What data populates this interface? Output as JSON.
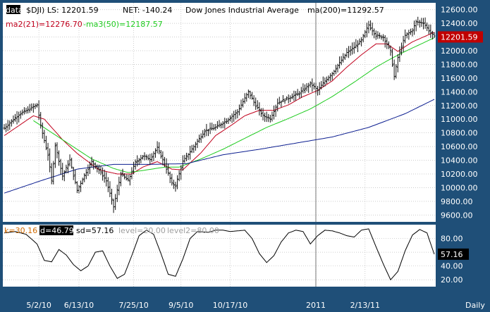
{
  "chart_data": [
    {
      "type": "ohlc",
      "header": {
        "symbol_text": "data(",
        "symbol_code": "$DJI",
        "last_label": ") LS: 12201.59",
        "net_label": "NET: -140.24",
        "name": "Dow Jones Industrial Average",
        "ma200_label": "ma(200)=11292.57",
        "ma21_label": "ma2(21)=12276.70",
        "ma50_label": "-ma3(50)=12187.57"
      },
      "last_value": 12201.59,
      "last_value_label": "12201.59",
      "ylim": [
        9500,
        12700
      ],
      "y_ticks": [
        9600,
        9800,
        10000,
        10200,
        10400,
        10600,
        10800,
        11000,
        11200,
        11400,
        11600,
        11800,
        12000,
        12200,
        12400,
        12600
      ],
      "y_tick_labels": [
        "9600.00",
        "9800.00",
        "10000.00",
        "10200.00",
        "10400.00",
        "10600.00",
        "10800.00",
        "11000.00",
        "11200.00",
        "11400.00",
        "11600.00",
        "11800.00",
        "12000.00",
        "12200.00",
        "12400.00",
        "12600.00"
      ],
      "x_range": [
        0,
        118
      ],
      "close_keypoints": [
        [
          0,
          10870
        ],
        [
          4,
          11070
        ],
        [
          7,
          11150
        ],
        [
          9,
          11210
        ],
        [
          10,
          10900
        ],
        [
          12,
          10480
        ],
        [
          13,
          10100
        ],
        [
          14,
          10620
        ],
        [
          16,
          10170
        ],
        [
          18,
          10400
        ],
        [
          20,
          9960
        ],
        [
          22,
          10180
        ],
        [
          24,
          10380
        ],
        [
          26,
          10260
        ],
        [
          28,
          10100
        ],
        [
          30,
          9720
        ],
        [
          32,
          10200
        ],
        [
          34,
          10100
        ],
        [
          36,
          10370
        ],
        [
          38,
          10460
        ],
        [
          40,
          10420
        ],
        [
          42,
          10580
        ],
        [
          44,
          10350
        ],
        [
          46,
          10060
        ],
        [
          47,
          10030
        ],
        [
          49,
          10380
        ],
        [
          52,
          10600
        ],
        [
          55,
          10830
        ],
        [
          58,
          10880
        ],
        [
          61,
          10980
        ],
        [
          64,
          11110
        ],
        [
          67,
          11400
        ],
        [
          69,
          11200
        ],
        [
          71,
          11050
        ],
        [
          73,
          11010
        ],
        [
          75,
          11240
        ],
        [
          78,
          11310
        ],
        [
          81,
          11380
        ],
        [
          84,
          11520
        ],
        [
          86,
          11420
        ],
        [
          88,
          11560
        ],
        [
          90,
          11670
        ],
        [
          92,
          11820
        ],
        [
          94,
          11970
        ],
        [
          96,
          12050
        ],
        [
          98,
          12150
        ],
        [
          100,
          12380
        ],
        [
          102,
          12220
        ],
        [
          104,
          12200
        ],
        [
          106,
          11990
        ],
        [
          107,
          11620
        ],
        [
          108,
          11900
        ],
        [
          110,
          12220
        ],
        [
          112,
          12300
        ],
        [
          113,
          12420
        ],
        [
          115,
          12410
        ],
        [
          117,
          12260
        ],
        [
          118,
          12201.59
        ]
      ],
      "ma_lines": [
        {
          "name": "ma2(21)",
          "color": "#c0001c",
          "keypoints": [
            [
              0,
              10760
            ],
            [
              8,
              11050
            ],
            [
              11,
              11000
            ],
            [
              16,
              10700
            ],
            [
              20,
              10500
            ],
            [
              26,
              10260
            ],
            [
              31,
              10200
            ],
            [
              35,
              10200
            ],
            [
              38,
              10300
            ],
            [
              42,
              10380
            ],
            [
              46,
              10270
            ],
            [
              49,
              10260
            ],
            [
              54,
              10510
            ],
            [
              58,
              10760
            ],
            [
              62,
              10900
            ],
            [
              66,
              11050
            ],
            [
              70,
              11130
            ],
            [
              74,
              11130
            ],
            [
              78,
              11210
            ],
            [
              82,
              11330
            ],
            [
              86,
              11420
            ],
            [
              90,
              11560
            ],
            [
              94,
              11760
            ],
            [
              98,
              11940
            ],
            [
              102,
              12100
            ],
            [
              105,
              12100
            ],
            [
              108,
              11990
            ],
            [
              112,
              12130
            ],
            [
              118,
              12270
            ]
          ]
        },
        {
          "name": "ma3(50)",
          "color": "#1ecb1e",
          "keypoints": [
            [
              8,
              10980
            ],
            [
              12,
              10840
            ],
            [
              18,
              10630
            ],
            [
              24,
              10420
            ],
            [
              30,
              10280
            ],
            [
              34,
              10220
            ],
            [
              38,
              10250
            ],
            [
              44,
              10300
            ],
            [
              48,
              10300
            ],
            [
              54,
              10420
            ],
            [
              60,
              10560
            ],
            [
              66,
              10720
            ],
            [
              72,
              10880
            ],
            [
              78,
              11010
            ],
            [
              84,
              11150
            ],
            [
              90,
              11330
            ],
            [
              96,
              11540
            ],
            [
              102,
              11760
            ],
            [
              106,
              11880
            ],
            [
              110,
              11990
            ],
            [
              114,
              12090
            ],
            [
              118,
              12190
            ]
          ]
        },
        {
          "name": "ma(200)",
          "color": "#0c1e90",
          "keypoints": [
            [
              0,
              9920
            ],
            [
              10,
              10100
            ],
            [
              20,
              10270
            ],
            [
              30,
              10340
            ],
            [
              40,
              10340
            ],
            [
              50,
              10350
            ],
            [
              60,
              10480
            ],
            [
              70,
              10560
            ],
            [
              80,
              10650
            ],
            [
              90,
              10740
            ],
            [
              100,
              10880
            ],
            [
              110,
              11080
            ],
            [
              118,
              11290
            ]
          ]
        }
      ],
      "volume_note": ""
    },
    {
      "type": "line",
      "header": {
        "k_label": "k=30.16",
        "d_label": "d=46.79",
        "sd_label": "sd=57.16",
        "level1_label": "level=20.00",
        "level2_label": "level2=80.00"
      },
      "series_name": "sd",
      "last_value": 57.16,
      "last_value_label": "57.16",
      "ylim": [
        10,
        100
      ],
      "y_ticks": [
        20,
        40,
        60,
        80
      ],
      "y_tick_labels": [
        "20.00",
        "40.00",
        "60.00",
        "80.00"
      ],
      "levels": [
        20,
        80
      ],
      "keypoints": [
        [
          0,
          88
        ],
        [
          3,
          90
        ],
        [
          6,
          86
        ],
        [
          9,
          72
        ],
        [
          11,
          48
        ],
        [
          13,
          46
        ],
        [
          15,
          64
        ],
        [
          17,
          56
        ],
        [
          19,
          42
        ],
        [
          21,
          33
        ],
        [
          23,
          40
        ],
        [
          25,
          60
        ],
        [
          27,
          62
        ],
        [
          29,
          40
        ],
        [
          31,
          22
        ],
        [
          33,
          28
        ],
        [
          35,
          55
        ],
        [
          37,
          84
        ],
        [
          39,
          92
        ],
        [
          41,
          86
        ],
        [
          43,
          58
        ],
        [
          45,
          28
        ],
        [
          47,
          25
        ],
        [
          49,
          50
        ],
        [
          51,
          80
        ],
        [
          53,
          90
        ],
        [
          56,
          89
        ],
        [
          58,
          92
        ],
        [
          60,
          92
        ],
        [
          62,
          90
        ],
        [
          64,
          91
        ],
        [
          66,
          92
        ],
        [
          68,
          80
        ],
        [
          70,
          58
        ],
        [
          72,
          45
        ],
        [
          74,
          55
        ],
        [
          76,
          75
        ],
        [
          78,
          88
        ],
        [
          80,
          92
        ],
        [
          82,
          90
        ],
        [
          84,
          72
        ],
        [
          86,
          84
        ],
        [
          88,
          92
        ],
        [
          90,
          91
        ],
        [
          92,
          88
        ],
        [
          94,
          84
        ],
        [
          96,
          82
        ],
        [
          98,
          92
        ],
        [
          100,
          94
        ],
        [
          102,
          68
        ],
        [
          104,
          43
        ],
        [
          106,
          20
        ],
        [
          108,
          32
        ],
        [
          110,
          62
        ],
        [
          112,
          85
        ],
        [
          114,
          93
        ],
        [
          116,
          88
        ],
        [
          118,
          57
        ]
      ]
    }
  ],
  "x_axis": {
    "labels": [
      {
        "text": "5/2/10",
        "pos": 9.5
      },
      {
        "text": "6/13/10",
        "pos": 20.5
      },
      {
        "text": "7/25/10",
        "pos": 35.5
      },
      {
        "text": "9/5/10",
        "pos": 48.5
      },
      {
        "text": "10/17/10",
        "pos": 62
      },
      {
        "text": "2011",
        "pos": 85.5
      },
      {
        "text": "2/13/11",
        "pos": 99
      }
    ],
    "vline_pos": 85.5,
    "period_label": "Daily"
  },
  "colors": {
    "background": "#1f4f78",
    "panel": "#ffffff",
    "grid": "#bcbcbc",
    "candle": "#111111",
    "sd_line": "#000000",
    "last_badge_price": "#c00000",
    "last_badge_osc": "#000000",
    "k_label": "#d06a00",
    "d_label_bg": "#000000",
    "level_label": "#a0a0a0",
    "ma21_label": "#c0001c",
    "ma50_label": "#1ecb1e"
  }
}
